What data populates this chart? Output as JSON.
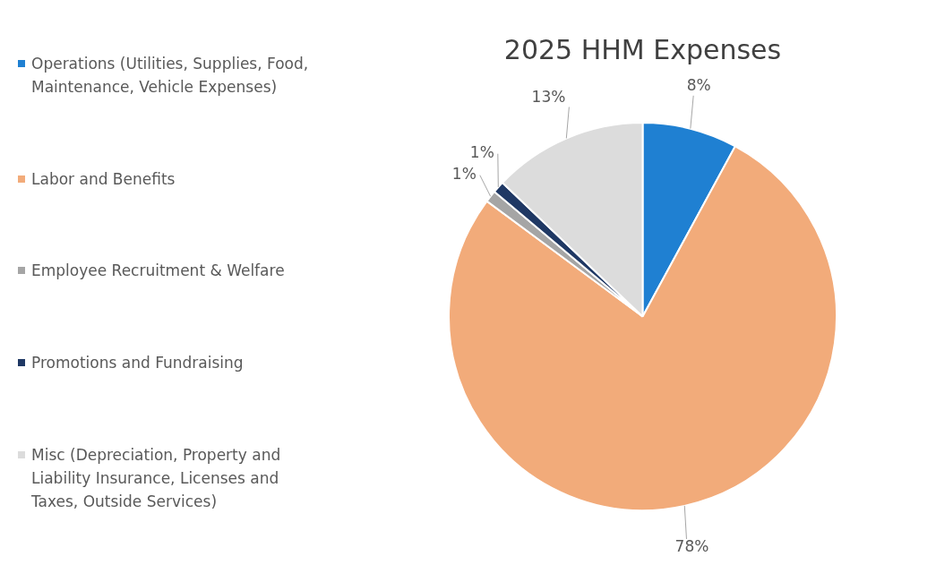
{
  "chart_data": {
    "type": "pie",
    "title": "2025 HHM Expenses",
    "categories": [
      "Operations (Utilities, Supplies, Food, Maintenance, Vehicle Expenses)",
      "Labor and Benefits",
      "Employee Recruitment & Welfare",
      "Promotions and Fundraising",
      "Misc (Depreciation, Property and Liability Insurance, Licenses and Taxes, Outside Services)"
    ],
    "values": [
      8,
      78,
      1,
      1,
      13
    ],
    "colors": [
      "#1f80d2",
      "#f2ab7a",
      "#a5a5a5",
      "#1f3864",
      "#dcdcdc"
    ],
    "value_labels": [
      "8%",
      "78%",
      "1%",
      "1%",
      "13%"
    ],
    "legend": "left"
  }
}
